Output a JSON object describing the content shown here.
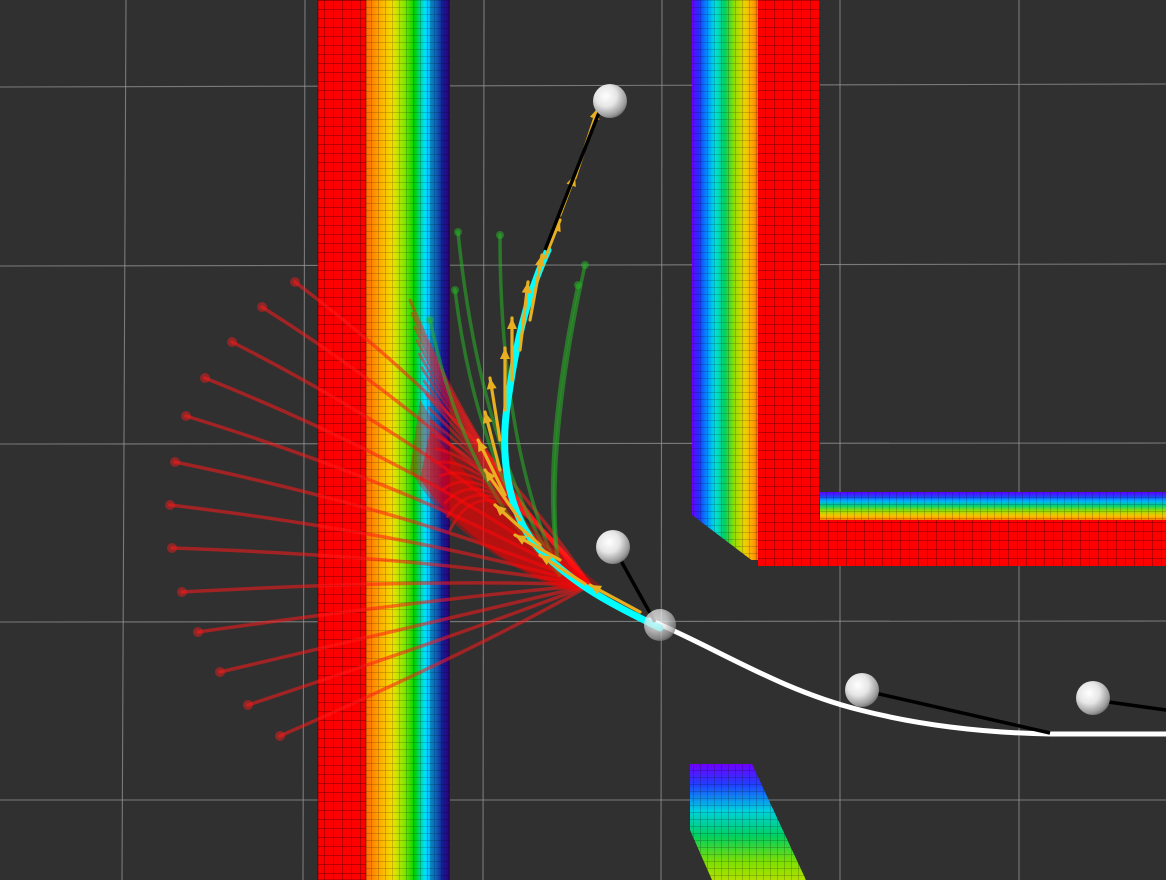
{
  "view": {
    "type": "rviz-3d-render-panel",
    "background": "#303030",
    "grid_color": "#a0a0a0",
    "costmap_colors": [
      "#ff0000",
      "#ff8c00",
      "#ffd700",
      "#7fff00",
      "#00c800",
      "#00ffff",
      "#0060ff",
      "#3000c0",
      "#8000ff"
    ],
    "colors": {
      "rejected_trajectories": "#ff1a1a",
      "candidate_trajectories": "#28b428",
      "selected_trajectory": "#00ffff",
      "pose_arrows": "#e8b020",
      "global_path": "#ffffff",
      "waypoint_sphere": "#f2f2f2",
      "waypoint_link": "#000000"
    },
    "markers": [
      "sphere",
      "arrow",
      "line-strip",
      "occupancy-grid"
    ]
  }
}
